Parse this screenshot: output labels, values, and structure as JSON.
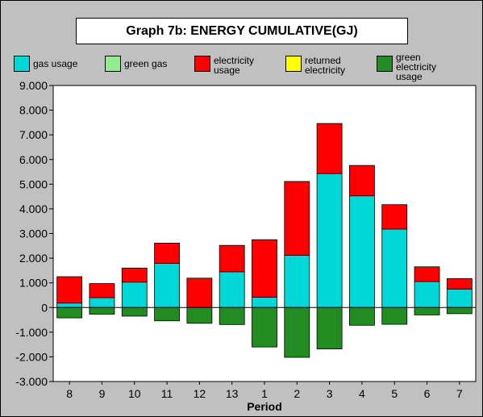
{
  "chart_data": {
    "type": "bar",
    "stacked": true,
    "title": "Graph 7b: ENERGY CUMULATIVE(GJ)",
    "xlabel": "Period",
    "ylabel": "",
    "ylim": [
      -3000,
      9000
    ],
    "yticks": [
      "9.000",
      "8.000",
      "7.000",
      "6.000",
      "5.000",
      "4.000",
      "3.000",
      "2.000",
      "1.000",
      "0",
      "-1.000",
      "-2.000",
      "-3.000"
    ],
    "ytick_values": [
      9000,
      8000,
      7000,
      6000,
      5000,
      4000,
      3000,
      2000,
      1000,
      0,
      -1000,
      -2000,
      -3000
    ],
    "categories": [
      "8",
      "9",
      "10",
      "11",
      "12",
      "13",
      "1",
      "2",
      "3",
      "4",
      "5",
      "6",
      "7"
    ],
    "legend_position": "top",
    "series": [
      {
        "name": "gas usage",
        "color": "#00d8d8",
        "values": [
          180,
          400,
          1030,
          1790,
          0,
          1450,
          420,
          2120,
          5430,
          4530,
          3180,
          1050,
          750
        ]
      },
      {
        "name": "green gas",
        "color": "#90ee90",
        "values": [
          0,
          0,
          0,
          0,
          0,
          0,
          0,
          0,
          0,
          0,
          0,
          0,
          0
        ]
      },
      {
        "name": "electricity usage",
        "color": "#ff0000",
        "values": [
          1070,
          570,
          570,
          820,
          1190,
          1070,
          2330,
          2990,
          2030,
          1230,
          990,
          600,
          420
        ]
      },
      {
        "name": "returned electricity",
        "color": "#ffff00",
        "values": [
          0,
          0,
          0,
          0,
          0,
          0,
          0,
          0,
          0,
          0,
          0,
          0,
          0
        ]
      },
      {
        "name": "green electricity usage",
        "color": "#228b22",
        "values": [
          -420,
          -270,
          -350,
          -540,
          -640,
          -690,
          -1600,
          -2020,
          -1680,
          -720,
          -680,
          -300,
          -250
        ]
      }
    ]
  }
}
